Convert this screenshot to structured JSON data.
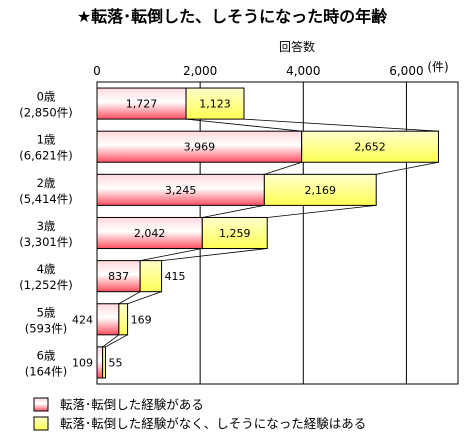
{
  "chart_data": {
    "type": "bar",
    "orientation": "horizontal",
    "stacked": true,
    "title": "★転落･転倒した、しそうになった時の年齢",
    "xlabel": "回答数",
    "x_unit": "(件)",
    "xlim": [
      0,
      7000
    ],
    "x_ticks": [
      "0",
      "2,000",
      "4,000",
      "6,000"
    ],
    "grid": true,
    "categories": [
      [
        "0歳",
        "(2,850件)"
      ],
      [
        "1歳",
        "(6,621件)"
      ],
      [
        "2歳",
        "(5,414件)"
      ],
      [
        "3歳",
        "(3,301件)"
      ],
      [
        "4歳",
        "(1,252件)"
      ],
      [
        "5歳",
        "(593件)"
      ],
      [
        "6歳",
        "(164件)"
      ]
    ],
    "series": [
      {
        "name": "転落･転倒した経験がある",
        "values": [
          1727,
          3969,
          3245,
          2042,
          837,
          424,
          109
        ],
        "labels": [
          "1,727",
          "3,969",
          "3,245",
          "2,042",
          "837",
          "424",
          "109"
        ],
        "color": "#ff4f5e"
      },
      {
        "name": "転落･転倒した経験がなく、しそうになった経験はある",
        "values": [
          1123,
          2652,
          2169,
          1259,
          415,
          169,
          55
        ],
        "labels": [
          "1,123",
          "2,652",
          "2,169",
          "1,259",
          "415",
          "169",
          "55"
        ],
        "color": "#ffff66"
      }
    ],
    "legend_position": "bottom"
  }
}
